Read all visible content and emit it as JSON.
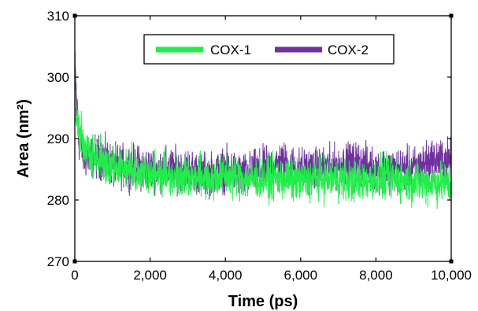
{
  "chart_data": {
    "type": "line",
    "title": "",
    "xlabel": "Time (ps)",
    "ylabel": "Area (nm²)",
    "xlim": [
      0,
      10000
    ],
    "ylim": [
      270,
      310
    ],
    "xticks": [
      0,
      2000,
      4000,
      6000,
      8000,
      10000
    ],
    "xtick_labels": [
      "0",
      "2,000",
      "4,000",
      "6,000",
      "8,000",
      "10,000"
    ],
    "yticks": [
      270,
      280,
      290,
      300,
      310
    ],
    "ytick_labels": [
      "270",
      "280",
      "290",
      "300",
      "310"
    ],
    "grid": false,
    "legend_position": "top-center",
    "series": [
      {
        "name": "COX-2",
        "color": "#7030a0",
        "x": [
          0,
          100,
          250,
          500,
          750,
          1000,
          1500,
          2000,
          2500,
          3000,
          3500,
          4000,
          4500,
          5000,
          5500,
          6000,
          6500,
          7000,
          7500,
          8000,
          8500,
          9000,
          9500,
          10000
        ],
        "y": [
          302,
          290,
          287,
          287,
          287,
          285.5,
          285.5,
          285,
          285,
          285,
          284,
          285,
          284,
          285,
          286,
          285,
          285,
          285.5,
          286,
          285,
          285,
          285,
          286.5,
          286.5
        ],
        "noise": 2.4
      },
      {
        "name": "COX-1",
        "color": "#22ee4a",
        "x": [
          0,
          100,
          250,
          500,
          750,
          1000,
          1500,
          2000,
          2500,
          3000,
          3500,
          4000,
          4500,
          5000,
          5500,
          6000,
          6500,
          7000,
          7500,
          8000,
          8500,
          9000,
          9500,
          10000
        ],
        "y": [
          297,
          291,
          289,
          287,
          286,
          285.5,
          285,
          284.5,
          284,
          284,
          283.5,
          284,
          283.5,
          283.5,
          283.5,
          283,
          283.5,
          283.5,
          283,
          283.5,
          283.5,
          283,
          283,
          282.5
        ],
        "noise": 2.4
      }
    ]
  }
}
